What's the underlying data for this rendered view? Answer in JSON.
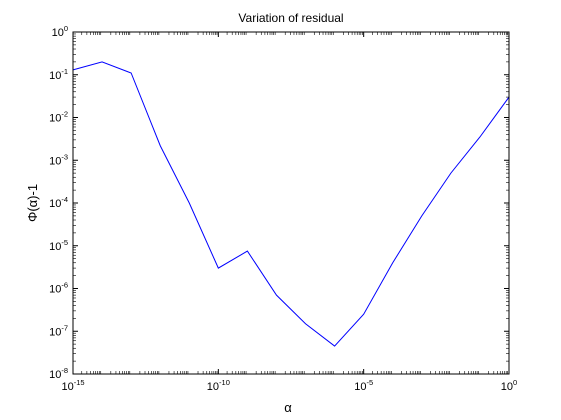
{
  "chart_data": {
    "type": "line",
    "title": "Variation of residual",
    "xlabel": "α",
    "ylabel": "Φ(α)-1",
    "xscale": "log",
    "yscale": "log",
    "xlim": [
      1e-15,
      1
    ],
    "ylim": [
      1e-08,
      1
    ],
    "grid": false,
    "box": true,
    "x_ticks": [
      {
        "base": "10",
        "exp": "-15"
      },
      {
        "base": "10",
        "exp": "-10"
      },
      {
        "base": "10",
        "exp": "-5"
      },
      {
        "base": "10",
        "exp": "0"
      }
    ],
    "y_ticks": [
      {
        "base": "10",
        "exp": "-8"
      },
      {
        "base": "10",
        "exp": "-7"
      },
      {
        "base": "10",
        "exp": "-6"
      },
      {
        "base": "10",
        "exp": "-5"
      },
      {
        "base": "10",
        "exp": "-4"
      },
      {
        "base": "10",
        "exp": "-3"
      },
      {
        "base": "10",
        "exp": "-2"
      },
      {
        "base": "10",
        "exp": "-1"
      },
      {
        "base": "10",
        "exp": "0"
      }
    ],
    "series": [
      {
        "color": "#0000ff",
        "x": [
          1e-15,
          1e-14,
          1e-13,
          1e-12,
          1e-11,
          1e-10,
          1e-09,
          1e-08,
          1e-07,
          1e-06,
          1e-05,
          0.0001,
          0.001,
          0.01,
          0.1,
          1
        ],
        "y": [
          0.13,
          0.2,
          0.11,
          0.0022,
          0.0001,
          3e-06,
          7.5e-06,
          7e-07,
          1.5e-07,
          4.5e-08,
          2.5e-07,
          4e-06,
          5e-05,
          0.0005,
          0.0035,
          0.03
        ]
      }
    ]
  }
}
